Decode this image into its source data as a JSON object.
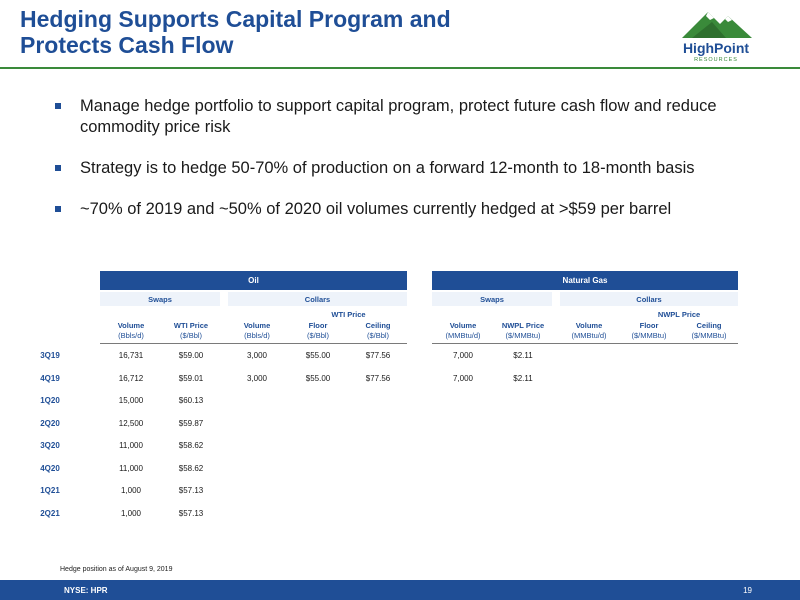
{
  "title": {
    "line1": "Hedging Supports Capital Program and",
    "line2": "Protects Cash Flow"
  },
  "logo": {
    "brand": "HighPoint",
    "sub": "RESOURCES",
    "icon": "mountain-logo"
  },
  "bullets": [
    "Manage hedge portfolio to support capital program, protect future cash flow and reduce commodity price risk",
    "Strategy is to hedge 50-70% of production on a forward 12-month to 18-month basis",
    "~70% of 2019 and ~50% of 2020 oil volumes currently hedged at >$59 per barrel"
  ],
  "table": {
    "oil_header": "Oil",
    "gas_header": "Natural Gas",
    "oil_swaps": "Swaps",
    "oil_collars": "Collars",
    "gas_swaps": "Swaps",
    "gas_collars": "Collars",
    "wti_price": "WTI Price",
    "nwpl_price": "NWPL Price",
    "cols": {
      "oil_swap_vol": {
        "t": "Volume",
        "u": "(Bbls/d)"
      },
      "oil_swap_price": {
        "t": "WTI Price",
        "u": "($/Bbl)"
      },
      "oil_col_vol": {
        "t": "Volume",
        "u": "(Bbls/d)"
      },
      "oil_col_floor": {
        "t": "Floor",
        "u": "($/Bbl)"
      },
      "oil_col_ceiling": {
        "t": "Ceiling",
        "u": "($/Bbl)"
      },
      "gas_swap_vol": {
        "t": "Volume",
        "u": "(MMBtu/d)"
      },
      "gas_swap_price": {
        "t": "NWPL Price",
        "u": "($/MMBtu)"
      },
      "gas_col_vol": {
        "t": "Volume",
        "u": "(MMBtu/d)"
      },
      "gas_col_floor": {
        "t": "Floor",
        "u": "($/MMBtu)"
      },
      "gas_col_ceiling": {
        "t": "Ceiling",
        "u": "($/MMBtu)"
      }
    },
    "rows": [
      {
        "q": "3Q19",
        "v": [
          "16,731",
          "$59.00",
          "3,000",
          "$55.00",
          "$77.56",
          "7,000",
          "$2.11",
          "",
          "",
          ""
        ]
      },
      {
        "q": "4Q19",
        "v": [
          "16,712",
          "$59.01",
          "3,000",
          "$55.00",
          "$77.56",
          "7,000",
          "$2.11",
          "",
          "",
          ""
        ]
      },
      {
        "q": "1Q20",
        "v": [
          "15,000",
          "$60.13",
          "",
          "",
          "",
          "",
          "",
          "",
          "",
          ""
        ]
      },
      {
        "q": "2Q20",
        "v": [
          "12,500",
          "$59.87",
          "",
          "",
          "",
          "",
          "",
          "",
          "",
          ""
        ]
      },
      {
        "q": "3Q20",
        "v": [
          "11,000",
          "$58.62",
          "",
          "",
          "",
          "",
          "",
          "",
          "",
          ""
        ]
      },
      {
        "q": "4Q20",
        "v": [
          "11,000",
          "$58.62",
          "",
          "",
          "",
          "",
          "",
          "",
          "",
          ""
        ]
      },
      {
        "q": "1Q21",
        "v": [
          "1,000",
          "$57.13",
          "",
          "",
          "",
          "",
          "",
          "",
          "",
          ""
        ]
      },
      {
        "q": "2Q21",
        "v": [
          "1,000",
          "$57.13",
          "",
          "",
          "",
          "",
          "",
          "",
          "",
          ""
        ]
      }
    ]
  },
  "footnote": "Hedge position as of August 9, 2019",
  "footer": {
    "ticker": "NYSE: HPR",
    "page": "19"
  },
  "colors": {
    "brand_blue": "#1f4e96",
    "brand_green": "#3a8a3a"
  }
}
